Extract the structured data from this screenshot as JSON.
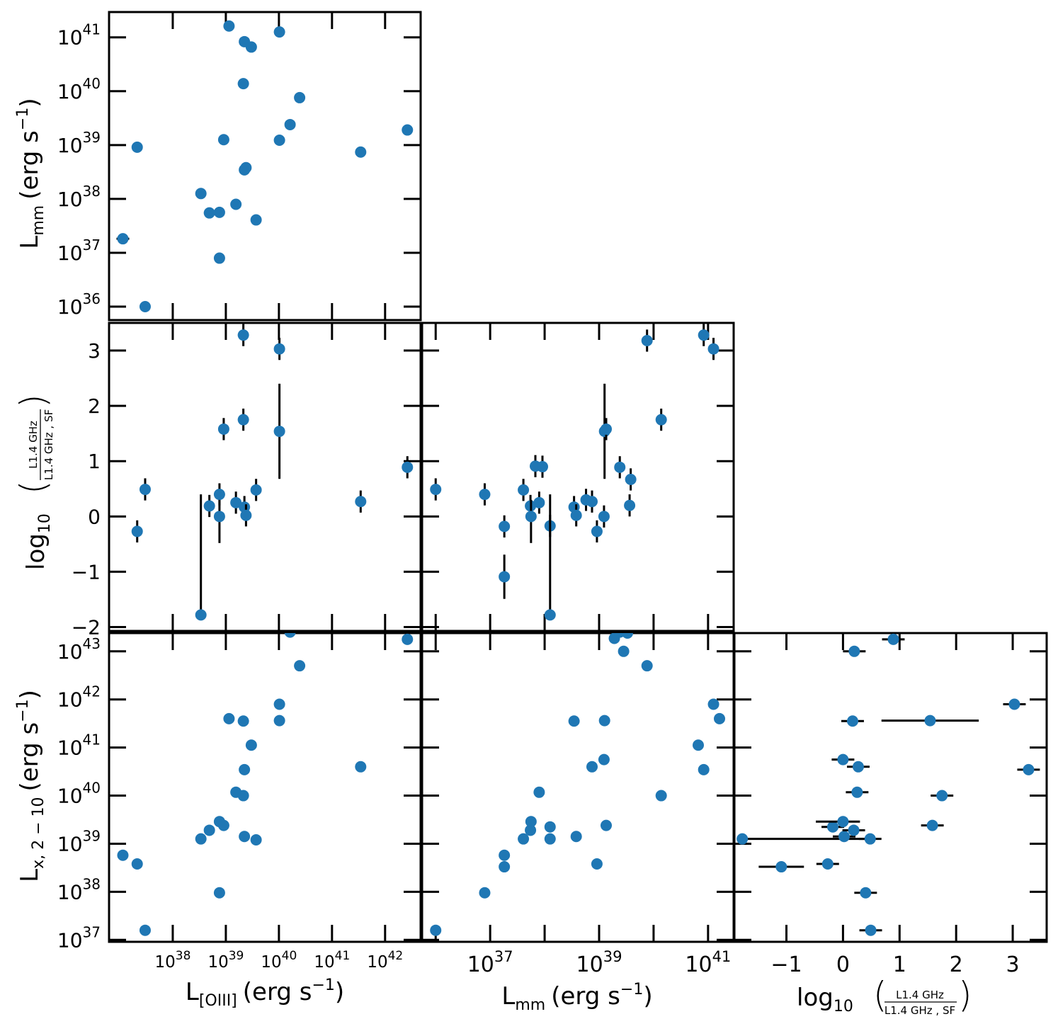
{
  "figure": {
    "marker_color": "#1f77b4",
    "errorbar_color": "#000000",
    "background": "#ffffff"
  },
  "axis_text": {
    "log_ratio": {
      "prefix": "log",
      "base": "10",
      "numerator": "L1.4 GHz",
      "denominator": "L1.4 GHz , SF"
    },
    "lmm": {
      "main": "L",
      "sub": "mm",
      "units": "(erg s",
      "exp": "−1",
      "close": ")"
    },
    "loiii": {
      "main": "L",
      "sub": "[OIII]",
      "units": "(erg s",
      "exp": "−1",
      "close": ")"
    },
    "lx": {
      "main": "L",
      "sub": "x, 2 − 10",
      "units": "(erg s",
      "exp": "−1",
      "close": ")"
    }
  },
  "chart_data": [
    {
      "id": "panel_mm_vs_oiii",
      "type": "scatter",
      "xscale": "log",
      "yscale": "log",
      "xlim_log10": [
        36.8,
        42.67
      ],
      "ylim_log10": [
        35.75,
        41.47
      ],
      "xlabel": "",
      "ylabel": "L_mm (erg s^-1)",
      "xticks": [],
      "yticks": [
        {
          "value": 36,
          "label": "10",
          "exp": "36"
        },
        {
          "value": 37,
          "label": "10",
          "exp": "37"
        },
        {
          "value": 38,
          "label": "10",
          "exp": "38"
        },
        {
          "value": 39,
          "label": "10",
          "exp": "39"
        },
        {
          "value": 40,
          "label": "10",
          "exp": "40"
        },
        {
          "value": 41,
          "label": "10",
          "exp": "41"
        }
      ],
      "points": [
        {
          "x": 37.06,
          "y": 37.26,
          "xerr": 0.12
        },
        {
          "x": 37.33,
          "y": 38.96
        },
        {
          "x": 37.48,
          "y": 36.0
        },
        {
          "x": 38.53,
          "y": 38.1
        },
        {
          "x": 38.69,
          "y": 37.74
        },
        {
          "x": 38.88,
          "y": 37.75
        },
        {
          "x": 38.88,
          "y": 36.9
        },
        {
          "x": 38.96,
          "y": 39.1
        },
        {
          "x": 39.06,
          "y": 41.21
        },
        {
          "x": 39.19,
          "y": 37.9
        },
        {
          "x": 39.33,
          "y": 40.14
        },
        {
          "x": 39.35,
          "y": 40.92
        },
        {
          "x": 39.35,
          "y": 38.54
        },
        {
          "x": 39.38,
          "y": 38.58
        },
        {
          "x": 39.48,
          "y": 40.82
        },
        {
          "x": 39.57,
          "y": 37.61
        },
        {
          "x": 40.01,
          "y": 41.1
        },
        {
          "x": 40.01,
          "y": 39.09
        },
        {
          "x": 40.21,
          "y": 39.38
        },
        {
          "x": 40.39,
          "y": 39.88
        },
        {
          "x": 41.54,
          "y": 38.87
        },
        {
          "x": 42.42,
          "y": 39.28
        }
      ]
    },
    {
      "id": "panel_ratio_vs_oiii",
      "type": "scatter",
      "xscale": "log",
      "yscale": "linear",
      "xlim_log10": [
        36.8,
        42.67
      ],
      "ylim": [
        -2.07,
        3.5
      ],
      "xlabel": "",
      "ylabel": "log10(L1.4GHz / L1.4GHz,SF)",
      "xticks": [],
      "yticks": [
        {
          "value": -2,
          "label": "−2"
        },
        {
          "value": -1,
          "label": "−1"
        },
        {
          "value": 0,
          "label": "0"
        },
        {
          "value": 1,
          "label": "1"
        },
        {
          "value": 2,
          "label": "2"
        },
        {
          "value": 3,
          "label": "3"
        }
      ],
      "points": [
        {
          "x": 37.33,
          "y": -0.27,
          "yerr": [
            0.2,
            0.2
          ]
        },
        {
          "x": 37.48,
          "y": 0.49,
          "yerr": [
            0.2,
            0.2
          ]
        },
        {
          "x": 38.53,
          "y": -1.78,
          "yerr": [
            0.05,
            2.18
          ]
        },
        {
          "x": 38.69,
          "y": 0.19,
          "yerr": [
            0.2,
            0.2
          ]
        },
        {
          "x": 38.88,
          "y": 0.4,
          "yerr": [
            0.2,
            0.2
          ]
        },
        {
          "x": 38.88,
          "y": 0.0,
          "yerr": [
            0.48,
            0.3
          ]
        },
        {
          "x": 38.96,
          "y": 1.58,
          "yerr": [
            0.2,
            0.2
          ]
        },
        {
          "x": 39.19,
          "y": 0.25,
          "yerr": [
            0.2,
            0.2
          ]
        },
        {
          "x": 39.33,
          "y": 1.75,
          "yerr": [
            0.2,
            0.2
          ]
        },
        {
          "x": 39.33,
          "y": 3.28,
          "yerr": [
            0.2,
            0.2
          ]
        },
        {
          "x": 39.35,
          "y": 0.17,
          "yerr": [
            0.2,
            0.2
          ]
        },
        {
          "x": 39.38,
          "y": 0.02,
          "yerr": [
            0.2,
            0.2
          ]
        },
        {
          "x": 39.57,
          "y": 0.48,
          "yerr": [
            0.2,
            0.2
          ]
        },
        {
          "x": 40.01,
          "y": 1.54,
          "yerr": [
            0.86,
            0.86
          ]
        },
        {
          "x": 40.01,
          "y": 3.03,
          "yerr": [
            0.2,
            0.2
          ]
        },
        {
          "x": 41.54,
          "y": 0.27,
          "yerr": [
            0.2,
            0.2
          ]
        },
        {
          "x": 42.42,
          "y": 0.89,
          "yerr": [
            0.2,
            0.2
          ]
        }
      ]
    },
    {
      "id": "panel_ratio_vs_mm",
      "type": "scatter",
      "xscale": "log",
      "yscale": "linear",
      "xlim_log10": [
        35.75,
        41.47
      ],
      "ylim": [
        -2.07,
        3.5
      ],
      "xlabel": "",
      "ylabel": "",
      "xticks": [],
      "yticks": [],
      "points": [
        {
          "x": 36.0,
          "y": 0.49,
          "yerr": [
            0.2,
            0.2
          ]
        },
        {
          "x": 36.9,
          "y": 0.4,
          "yerr": [
            0.2,
            0.2
          ]
        },
        {
          "x": 37.26,
          "y": -0.18,
          "yerr": [
            0.2,
            0.2
          ]
        },
        {
          "x": 37.26,
          "y": -1.09,
          "yerr": [
            0.4,
            0.4
          ]
        },
        {
          "x": 37.61,
          "y": 0.48,
          "yerr": [
            0.2,
            0.2
          ]
        },
        {
          "x": 37.74,
          "y": 0.19,
          "yerr": [
            0.2,
            0.2
          ]
        },
        {
          "x": 37.75,
          "y": 0.0,
          "yerr": [
            0.48,
            0.3
          ]
        },
        {
          "x": 37.83,
          "y": 0.91,
          "yerr": [
            0.2,
            0.2
          ]
        },
        {
          "x": 37.9,
          "y": 0.25,
          "yerr": [
            0.2,
            0.2
          ]
        },
        {
          "x": 37.96,
          "y": 0.9,
          "yerr": [
            0.2,
            0.2
          ]
        },
        {
          "x": 38.1,
          "y": -0.17,
          "yerr": [
            0.2,
            0.2
          ]
        },
        {
          "x": 38.1,
          "y": -1.78,
          "yerr": [
            0.05,
            2.18
          ]
        },
        {
          "x": 38.54,
          "y": 0.17,
          "yerr": [
            0.2,
            0.2
          ]
        },
        {
          "x": 38.58,
          "y": 0.02,
          "yerr": [
            0.2,
            0.2
          ]
        },
        {
          "x": 38.76,
          "y": 0.3,
          "yerr": [
            0.2,
            0.2
          ]
        },
        {
          "x": 38.87,
          "y": 0.27,
          "yerr": [
            0.2,
            0.2
          ]
        },
        {
          "x": 38.96,
          "y": -0.27,
          "yerr": [
            0.2,
            0.2
          ]
        },
        {
          "x": 39.09,
          "y": 0.0,
          "yerr": [
            0.2,
            0.2
          ]
        },
        {
          "x": 39.1,
          "y": 1.54,
          "yerr": [
            0.86,
            0.86
          ]
        },
        {
          "x": 39.13,
          "y": 1.58,
          "yerr": [
            0.2,
            0.2
          ]
        },
        {
          "x": 39.38,
          "y": 0.89,
          "yerr": [
            0.2,
            0.2
          ]
        },
        {
          "x": 39.56,
          "y": 0.2,
          "yerr": [
            0.2,
            0.2
          ]
        },
        {
          "x": 39.58,
          "y": 0.67,
          "yerr": [
            0.2,
            0.2
          ]
        },
        {
          "x": 39.88,
          "y": 3.18,
          "yerr": [
            0.2,
            0.2
          ]
        },
        {
          "x": 40.14,
          "y": 1.75,
          "yerr": [
            0.2,
            0.2
          ]
        },
        {
          "x": 40.92,
          "y": 3.28,
          "yerr": [
            0.2,
            0.2
          ]
        },
        {
          "x": 41.1,
          "y": 3.03,
          "yerr": [
            0.2,
            0.2
          ]
        }
      ]
    },
    {
      "id": "panel_lx_vs_oiii",
      "type": "scatter",
      "xscale": "log",
      "yscale": "log",
      "xlim_log10": [
        36.8,
        42.67
      ],
      "ylim_log10": [
        36.96,
        43.38
      ],
      "xlabel": "L_[OIII] (erg s^-1)",
      "ylabel": "L_x,2-10 (erg s^-1)",
      "xticks": [
        {
          "value": 38,
          "label": "10",
          "exp": "38"
        },
        {
          "value": 39,
          "label": "10",
          "exp": "39"
        },
        {
          "value": 40,
          "label": "10",
          "exp": "40"
        },
        {
          "value": 41,
          "label": "10",
          "exp": "41"
        },
        {
          "value": 42,
          "label": "10",
          "exp": "42"
        }
      ],
      "yticks": [
        {
          "value": 37,
          "label": "10",
          "exp": "37"
        },
        {
          "value": 38,
          "label": "10",
          "exp": "38"
        },
        {
          "value": 39,
          "label": "10",
          "exp": "39"
        },
        {
          "value": 40,
          "label": "10",
          "exp": "40"
        },
        {
          "value": 41,
          "label": "10",
          "exp": "41"
        },
        {
          "value": 42,
          "label": "10",
          "exp": "42"
        },
        {
          "value": 43,
          "label": "10",
          "exp": "43"
        }
      ],
      "points": [
        {
          "x": 37.06,
          "y": 38.76
        },
        {
          "x": 37.33,
          "y": 38.58
        },
        {
          "x": 37.48,
          "y": 37.2
        },
        {
          "x": 38.53,
          "y": 39.1
        },
        {
          "x": 38.69,
          "y": 39.28
        },
        {
          "x": 38.88,
          "y": 39.46
        },
        {
          "x": 38.88,
          "y": 37.98
        },
        {
          "x": 38.96,
          "y": 39.38
        },
        {
          "x": 39.06,
          "y": 41.6
        },
        {
          "x": 39.19,
          "y": 40.07
        },
        {
          "x": 39.33,
          "y": 41.55
        },
        {
          "x": 39.33,
          "y": 40.0
        },
        {
          "x": 39.35,
          "y": 40.54
        },
        {
          "x": 39.35,
          "y": 39.15
        },
        {
          "x": 39.48,
          "y": 41.05
        },
        {
          "x": 39.57,
          "y": 39.08
        },
        {
          "x": 40.01,
          "y": 41.9
        },
        {
          "x": 40.01,
          "y": 41.56
        },
        {
          "x": 40.21,
          "y": 43.4
        },
        {
          "x": 40.39,
          "y": 42.7
        },
        {
          "x": 41.54,
          "y": 40.6
        },
        {
          "x": 42.42,
          "y": 43.25
        }
      ]
    },
    {
      "id": "panel_lx_vs_mm",
      "type": "scatter",
      "xscale": "log",
      "yscale": "log",
      "xlim_log10": [
        35.75,
        41.47
      ],
      "ylim_log10": [
        36.96,
        43.38
      ],
      "xlabel": "L_mm (erg s^-1)",
      "ylabel": "",
      "xticks": [
        {
          "value": 37,
          "label": "10",
          "exp": "37"
        },
        {
          "value": 39,
          "label": "10",
          "exp": "39"
        },
        {
          "value": 41,
          "label": "10",
          "exp": "41"
        }
      ],
      "yticks": [],
      "points": [
        {
          "x": 36.0,
          "y": 37.2
        },
        {
          "x": 36.9,
          "y": 37.98
        },
        {
          "x": 37.26,
          "y": 38.76
        },
        {
          "x": 37.26,
          "y": 38.52
        },
        {
          "x": 37.61,
          "y": 39.1
        },
        {
          "x": 37.74,
          "y": 39.28
        },
        {
          "x": 37.75,
          "y": 39.46
        },
        {
          "x": 37.9,
          "y": 40.07
        },
        {
          "x": 38.1,
          "y": 39.35
        },
        {
          "x": 38.1,
          "y": 39.1
        },
        {
          "x": 38.54,
          "y": 41.55
        },
        {
          "x": 38.58,
          "y": 39.15
        },
        {
          "x": 38.87,
          "y": 40.6
        },
        {
          "x": 38.96,
          "y": 38.58
        },
        {
          "x": 39.09,
          "y": 40.75
        },
        {
          "x": 39.1,
          "y": 41.56
        },
        {
          "x": 39.13,
          "y": 39.38
        },
        {
          "x": 39.28,
          "y": 43.27
        },
        {
          "x": 39.38,
          "y": 43.4
        },
        {
          "x": 39.45,
          "y": 43.0
        },
        {
          "x": 39.52,
          "y": 43.38
        },
        {
          "x": 39.88,
          "y": 42.7
        },
        {
          "x": 40.14,
          "y": 40.0
        },
        {
          "x": 40.82,
          "y": 41.05
        },
        {
          "x": 40.92,
          "y": 40.54
        },
        {
          "x": 41.1,
          "y": 41.9
        },
        {
          "x": 41.21,
          "y": 41.6
        }
      ]
    },
    {
      "id": "panel_lx_vs_ratio",
      "type": "scatter",
      "xscale": "linear",
      "yscale": "log",
      "xlim": [
        -1.92,
        3.6
      ],
      "ylim_log10": [
        36.96,
        43.38
      ],
      "xlabel": "log10(L1.4GHz / L1.4GHz,SF)",
      "ylabel": "",
      "xticks": [
        {
          "value": -1,
          "label": "−1"
        },
        {
          "value": 0,
          "label": "0"
        },
        {
          "value": 1,
          "label": "1"
        },
        {
          "value": 2,
          "label": "2"
        },
        {
          "value": 3,
          "label": "3"
        }
      ],
      "yticks": [],
      "points": [
        {
          "x": -1.78,
          "y": 39.1,
          "xerr": [
            0.05,
            2.18
          ]
        },
        {
          "x": -1.09,
          "y": 38.52,
          "xerr": [
            0.4,
            0.4
          ]
        },
        {
          "x": -0.27,
          "y": 38.58,
          "xerr": [
            0.2,
            0.2
          ]
        },
        {
          "x": -0.18,
          "y": 39.35,
          "xerr": [
            0.2,
            0.2
          ]
        },
        {
          "x": 0.0,
          "y": 40.75,
          "xerr": [
            0.2,
            0.2
          ]
        },
        {
          "x": 0.0,
          "y": 39.46,
          "xerr": [
            0.48,
            0.3
          ]
        },
        {
          "x": 0.02,
          "y": 39.15,
          "xerr": [
            0.2,
            0.2
          ]
        },
        {
          "x": 0.17,
          "y": 41.55,
          "xerr": [
            0.2,
            0.2
          ]
        },
        {
          "x": 0.19,
          "y": 39.28,
          "xerr": [
            0.2,
            0.2
          ]
        },
        {
          "x": 0.2,
          "y": 43.0,
          "xerr": [
            0.2,
            0.2
          ]
        },
        {
          "x": 0.25,
          "y": 40.07,
          "xerr": [
            0.2,
            0.2
          ]
        },
        {
          "x": 0.27,
          "y": 40.6,
          "xerr": [
            0.2,
            0.2
          ]
        },
        {
          "x": 0.4,
          "y": 37.98,
          "xerr": [
            0.2,
            0.2
          ]
        },
        {
          "x": 0.48,
          "y": 39.1,
          "xerr": [
            0.2,
            0.2
          ]
        },
        {
          "x": 0.49,
          "y": 37.2,
          "xerr": [
            0.2,
            0.2
          ]
        },
        {
          "x": 0.89,
          "y": 43.25,
          "xerr": [
            0.2,
            0.2
          ]
        },
        {
          "x": 1.54,
          "y": 41.56,
          "xerr": [
            0.86,
            0.86
          ]
        },
        {
          "x": 1.58,
          "y": 39.38,
          "xerr": [
            0.2,
            0.2
          ]
        },
        {
          "x": 1.75,
          "y": 40.0,
          "xerr": [
            0.2,
            0.2
          ]
        },
        {
          "x": 3.03,
          "y": 41.9,
          "xerr": [
            0.2,
            0.2
          ]
        },
        {
          "x": 3.28,
          "y": 40.54,
          "xerr": [
            0.2,
            0.2
          ]
        }
      ]
    }
  ]
}
